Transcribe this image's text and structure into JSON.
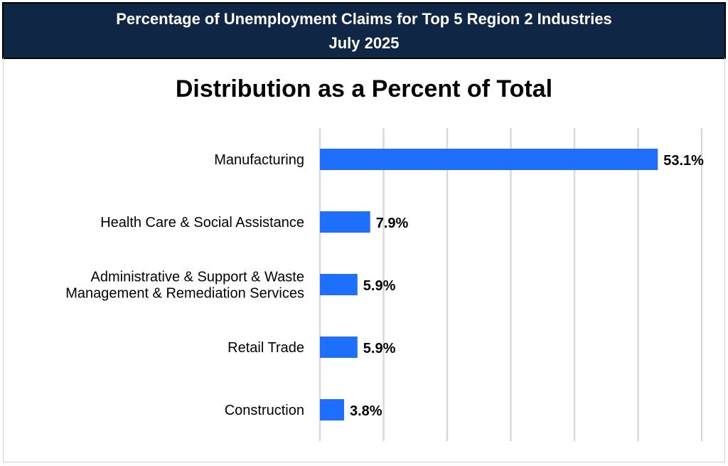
{
  "header": {
    "line1": "Percentage of Unemployment Claims for Top 5 Region 2 Industries",
    "line2": "July 2025"
  },
  "chart_data": {
    "type": "bar",
    "orientation": "horizontal",
    "title": "Distribution as a Percent of Total",
    "categories": [
      [
        "Manufacturing"
      ],
      [
        "Health Care & Social Assistance"
      ],
      [
        "Administrative & Support & Waste",
        "Management & Remediation Services"
      ],
      [
        "Retail Trade"
      ],
      [
        "Construction"
      ]
    ],
    "values": [
      53.1,
      7.9,
      5.9,
      5.9,
      3.8
    ],
    "labels": [
      "53.1%",
      "7.9%",
      "5.9%",
      "5.9%",
      "3.8%"
    ],
    "xlim": [
      0,
      60
    ],
    "grid_step": 10,
    "grid": true,
    "bar_color": "#1f6fff",
    "grid_color": "#d9d9d9"
  }
}
